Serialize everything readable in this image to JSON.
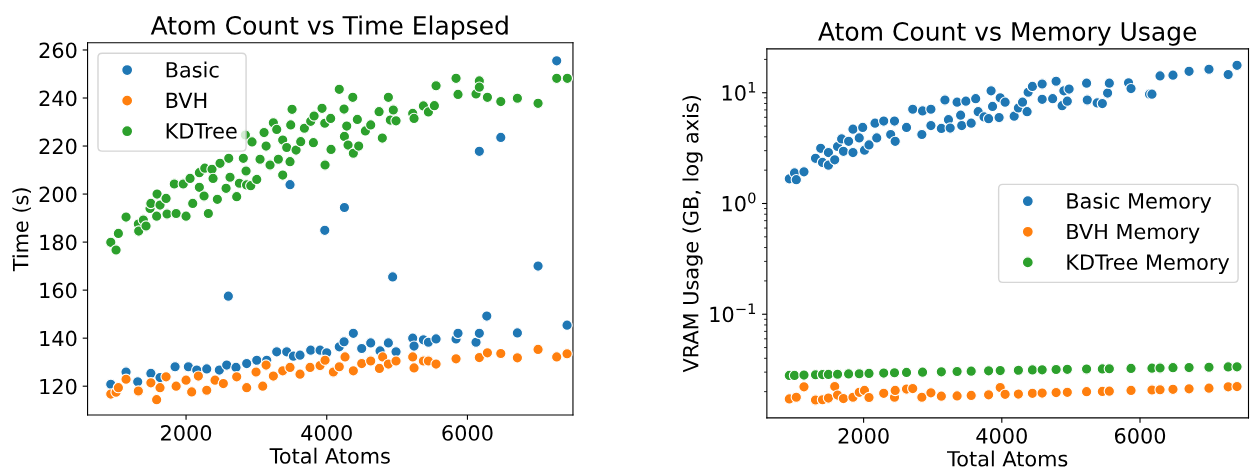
{
  "chart_data": [
    {
      "type": "scatter",
      "title": "Atom Count vs Time Elapsed",
      "xlabel": "Total Atoms",
      "ylabel": "Time (s)",
      "xlim": [
        600,
        7500
      ],
      "ylim": [
        108,
        263
      ],
      "xticks": [
        2000,
        4000,
        6000
      ],
      "yticks": [
        120,
        140,
        160,
        180,
        200,
        220,
        240,
        260
      ],
      "legend": "top left",
      "marker": "circle",
      "grid": false,
      "series": [
        {
          "name": "Basic",
          "color": "#1f77b4",
          "x": [
            930,
            1038,
            1147,
            1313,
            1500,
            1630,
            1844,
            2033,
            2152,
            2294,
            2473,
            2578,
            2601,
            2710,
            2862,
            3005,
            3147,
            3289,
            3431,
            3478,
            3526,
            3620,
            3772,
            3905,
            3972,
            4000,
            4178,
            4246,
            4251,
            4378,
            4497,
            4625,
            4758,
            4876,
            4937,
            4985,
            5222,
            5241,
            5374,
            5445,
            5554,
            5838,
            5866,
            6122,
            6169,
            6169,
            6275,
            6474,
            6710,
            7004,
            7269,
            7416
          ],
          "values": [
            120.8,
            null,
            125.9,
            121.8,
            125.3,
            123.6,
            128.1,
            128.1,
            126.7,
            127.2,
            126.7,
            128.8,
            157.5,
            127.8,
            129.4,
            130.8,
            130.8,
            134.3,
            134.3,
            203.9,
            132.5,
            132.9,
            135,
            135,
            184.9,
            133.9,
            136.4,
            138.5,
            194.4,
            142,
            135.7,
            138,
            134.7,
            138,
            165.5,
            134.3,
            140,
            136.7,
            139.3,
            138.3,
            139.7,
            139.7,
            142,
            138.3,
            142,
            217.8,
            149.2,
            223.6,
            142.2,
            170,
            255.5,
            145.4
          ]
        },
        {
          "name": "BVH",
          "color": "#ff7f0e",
          "x": [
            930,
            1005,
            1038,
            1147,
            1322,
            1500,
            1582,
            1630,
            1716,
            1859,
            2000,
            2080,
            2175,
            2294,
            2412,
            2530,
            2720,
            2862,
            2995,
            3090,
            3138,
            3241,
            3374,
            3478,
            3620,
            3763,
            3905,
            3976,
            4094,
            4178,
            4260,
            4378,
            4497,
            4625,
            4749,
            4795,
            4876,
            4985,
            5222,
            5241,
            5374,
            5445,
            5554,
            5838,
            6122,
            6169,
            6284,
            6474,
            6710,
            7004,
            7269,
            7416
          ],
          "values": [
            116.7,
            117.5,
            119.4,
            122.9,
            118,
            121.4,
            114.4,
            119.4,
            123.9,
            120,
            122.5,
            117.6,
            124.2,
            118.3,
            122.5,
            121.1,
            123.9,
            119.4,
            125.9,
            120,
            128.8,
            124.2,
            126.4,
            127.8,
            125,
            127.8,
            128.6,
            130.8,
            125.9,
            128.1,
            132.2,
            126.4,
            129.4,
            130.5,
            127.4,
            132.2,
            129.2,
            130.5,
            132.2,
            127.6,
            130.5,
            130.5,
            129.2,
            131.4,
            null,
            131.9,
            133.9,
            133.6,
            131.8,
            135.3,
            132.2,
            133.5
          ]
        },
        {
          "name": "KDTree",
          "color": "#2ca02c",
          "x": [
            930,
            1005,
            1038,
            1147,
            1322,
            1327,
            1393,
            1431,
            1488,
            1500,
            1582,
            1588,
            1630,
            1716,
            1730,
            1833,
            1859,
            1960,
            2000,
            2057,
            2095,
            2189,
            2189,
            2256,
            2266,
            2317,
            2369,
            2384,
            2445,
            2483,
            2569,
            2607,
            2625,
            2720,
            2758,
            2814,
            2843,
            2853,
            2860,
            2920,
            2938,
            3005,
            3052,
            3109,
            3138,
            3194,
            3241,
            3289,
            3312,
            3374,
            3374,
            3431,
            3478,
            3488,
            3507,
            3564,
            3630,
            3682,
            3772,
            3810,
            3820,
            3933,
            3972,
            3976,
            4056,
            4061,
            4178,
            4246,
            4251,
            4284,
            4303,
            4370,
            4378,
            4435,
            4454,
            4549,
            4625,
            4744,
            4790,
            4876,
            4904,
            4946,
            4985,
            5222,
            5241,
            5374,
            5445,
            5530,
            5554,
            5838,
            5866,
            6122,
            6169,
            6169,
            6284,
            6474,
            6710,
            7004,
            7269,
            7420
          ],
          "values": [
            179.9,
            176.7,
            183.6,
            190.4,
            187.5,
            184.6,
            189.2,
            186.7,
            194,
            196.1,
            190.8,
            200,
            195.4,
            198.2,
            191.7,
            204.2,
            191.9,
            204.2,
            190.8,
            206.5,
            196.1,
            208.9,
            202.8,
            199.2,
            210.8,
            191.9,
            210.3,
            206.5,
            197.8,
            212.8,
            202.4,
            214.9,
            207,
            198.9,
            204.5,
            214.9,
            224.6,
            209.6,
            203.8,
            203.5,
            221.7,
            206.1,
            214.5,
            225.6,
            220,
            212.1,
            229.7,
            226.9,
            214.5,
            222.5,
            207.9,
            219.4,
            213.5,
            228.8,
            235.3,
            218.3,
            221.8,
            227.4,
            230.3,
            221.4,
            232.5,
            235.7,
            229.5,
            212.1,
            231.5,
            218.6,
            243.6,
            235.4,
            224,
            228.3,
            220.4,
            240.3,
            217,
            231.1,
            220,
            226.3,
            228.8,
            234.3,
            223.3,
            240.3,
            230.8,
            235,
            230.5,
            233.6,
            231.5,
            236.7,
            234.2,
            236.8,
            245.1,
            248.2,
            241.5,
            241.7,
            247.1,
            244.5,
            240.3,
            238.5,
            239.9,
            237.8,
            248.2,
            248.2
          ]
        }
      ]
    },
    {
      "type": "scatter",
      "title": "Atom Count vs Memory Usage",
      "xlabel": "Total Atoms",
      "ylabel": "VRAM Usage (GB, log axis)",
      "log": "y",
      "xlim": [
        600,
        7570
      ],
      "ylim": [
        0.0116,
        24.9
      ],
      "xticks": [
        2000,
        4000,
        6000
      ],
      "yticks": [
        {
          "value": 0.1,
          "label": "10$^{−1}$"
        },
        {
          "value": 1,
          "label": "10$^{0}$"
        },
        {
          "value": 10,
          "label": "10$^{1}$"
        }
      ],
      "legend": "right",
      "marker": "circle",
      "grid": false,
      "series": [
        {
          "name": "Basic Memory",
          "color": "#1f77b4",
          "x": [
            925,
            1000,
            1026,
            1137,
            1304,
            1379,
            1405,
            1491,
            1491,
            1582,
            1623,
            1682,
            1708,
            1783,
            1846,
            1846,
            1937,
            1987,
            2013,
            2078,
            2165,
            2190,
            2291,
            2392,
            2447,
            2457,
            2621,
            2711,
            2843,
            2853,
            2974,
            2974,
            3125,
            3177,
            3228,
            3253,
            3353,
            3404,
            3420,
            3480,
            3557,
            3622,
            3658,
            3743,
            3809,
            3845,
            3866,
            3961,
            3977,
            4048,
            4179,
            4240,
            4300,
            4366,
            4381,
            4443,
            4584,
            4584,
            4736,
            4786,
            4873,
            4898,
            4948,
            4974,
            5227,
            5237,
            5380,
            5455,
            5531,
            5556,
            5834,
            5870,
            6138,
            6173,
            6290,
            6477,
            6710,
            6998,
            7276,
            7404
          ],
          "values": [
            1.67,
            1.89,
            1.64,
            1.93,
            2.56,
            3.15,
            2.35,
            2.88,
            2.22,
            2.48,
            3.27,
            3.83,
            2.96,
            3.64,
            4.69,
            2.88,
            3.91,
            4.86,
            3.03,
            3.38,
            5.31,
            3.91,
            5.55,
            4.2,
            5.55,
            3.64,
            4.86,
            7.1,
            4.2,
            6.85,
            7.1,
            5.05,
            4.76,
            8.6,
            5.71,
            4.8,
            8.22,
            6.28,
            5.05,
            8.4,
            5.31,
            8.85,
            6.75,
            6.05,
            5.83,
            10.4,
            7.53,
            5.97,
            9.0,
            8.22,
            6.14,
            7.3,
            8.22,
            6.75,
            10.1,
            11.4,
            12.0,
            8.72,
            8.85,
            12.7,
            7.65,
            10.4,
            8.4,
            10.8,
            12.2,
            8.6,
            8.1,
            7.98,
            9.94,
            12.2,
            12.3,
            10.9,
            9.7,
            9.7,
            14.2,
            14.4,
            15.6,
            16.3,
            14.6,
            17.7
          ]
        },
        {
          "name": "BVH Memory",
          "color": "#ff7f0e",
          "x": [
            925,
            1000,
            1026,
            1137,
            1304,
            1405,
            1491,
            1582,
            1623,
            1708,
            1846,
            1937,
            2013,
            2078,
            2291,
            2447,
            2457,
            2621,
            2711,
            2843,
            2974,
            3125,
            3353,
            3557,
            3809,
            3977,
            4048,
            4240,
            4443,
            4584,
            4786,
            4948,
            5227,
            5455,
            5556,
            5870,
            6173,
            6290,
            6477,
            6710,
            6998,
            7276,
            7404
          ],
          "values": [
            0.0172,
            null,
            0.0178,
            0.0221,
            0.0168,
            0.0169,
            0.0175,
            0.0222,
            0.0186,
            0.0173,
            0.0178,
            0.0197,
            0.0205,
            0.0177,
            0.0193,
            0.0178,
            0.0205,
            0.0211,
            0.0213,
            0.0178,
            0.0195,
            0.0182,
            0.0183,
            0.0185,
            0.0187,
            0.0218,
            0.0189,
            0.019,
            0.0193,
            0.0194,
            0.0196,
            0.0197,
            0.02,
            0.0201,
            0.0202,
            0.0205,
            0.0207,
            0.0208,
            0.021,
            0.0212,
            0.0215,
            0.0221,
            0.0222
          ]
        },
        {
          "name": "KDTree Memory",
          "color": "#2ca02c",
          "x": [
            925,
            1000,
            1137,
            1304,
            1405,
            1491,
            1623,
            1783,
            1937,
            2078,
            2291,
            2447,
            2621,
            2853,
            3125,
            3353,
            3557,
            3809,
            3977,
            4240,
            4443,
            4584,
            4786,
            4948,
            5227,
            5455,
            5556,
            5870,
            6173,
            6290,
            6477,
            6710,
            6998,
            7276,
            7404
          ],
          "values": [
            0.028,
            0.028,
            0.0282,
            0.0284,
            0.0285,
            0.0286,
            0.0287,
            0.0289,
            0.029,
            0.0292,
            0.0294,
            0.0296,
            0.0298,
            0.03,
            0.0302,
            0.0304,
            0.0306,
            0.0308,
            0.031,
            0.0312,
            0.0314,
            0.0315,
            0.0317,
            0.0318,
            0.032,
            0.0321,
            0.0322,
            0.0324,
            0.0326,
            0.0327,
            0.0329,
            0.033,
            0.0332,
            0.0334,
            0.0335
          ]
        }
      ]
    }
  ]
}
